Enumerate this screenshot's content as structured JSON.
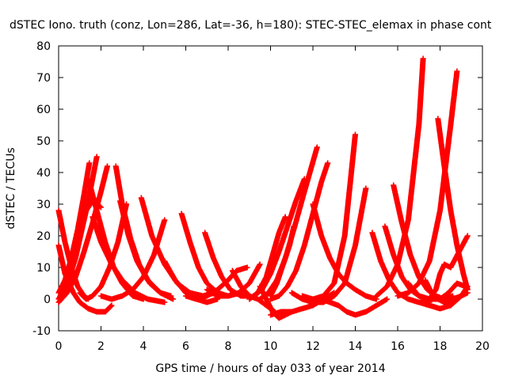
{
  "chart_data": {
    "type": "scatter",
    "title": "dSTEC Iono. truth (conz, Lon=286, Lat=-36, h=180): STEC-STEC_elemax in phase cont",
    "xlabel": "GPS time / hours of day 033 of year 2014",
    "ylabel": "dSTEC  / TECUs",
    "xlim": [
      0,
      20
    ],
    "ylim": [
      -10,
      80
    ],
    "x_ticks": [
      0,
      2,
      4,
      6,
      8,
      10,
      12,
      14,
      16,
      18,
      20
    ],
    "y_ticks": [
      -10,
      0,
      10,
      20,
      30,
      40,
      50,
      60,
      70,
      80
    ],
    "grid": false,
    "legend": "none",
    "marker": "+",
    "color": "#ff0000",
    "arcs": [
      {
        "x": [
          0.0,
          0.3,
          0.6,
          0.9,
          1.2,
          1.4
        ],
        "y": [
          28,
          18,
          10,
          4,
          1,
          0
        ]
      },
      {
        "x": [
          0.0,
          0.3,
          0.7,
          1.0,
          1.4,
          1.8,
          2.2,
          2.5
        ],
        "y": [
          17,
          8,
          2,
          -1,
          -3,
          -4,
          -4,
          -2
        ]
      },
      {
        "x": [
          0.0,
          0.3,
          0.6,
          0.9,
          1.2,
          1.45
        ],
        "y": [
          2,
          6,
          13,
          22,
          33,
          43
        ]
      },
      {
        "x": [
          0.0,
          0.4,
          0.8,
          1.1,
          1.4,
          1.8
        ],
        "y": [
          0,
          5,
          13,
          22,
          31,
          45
        ]
      },
      {
        "x": [
          0.0,
          0.4,
          0.8,
          1.2,
          1.6,
          2.0,
          2.3
        ],
        "y": [
          -1,
          2,
          7,
          15,
          24,
          34,
          42
        ]
      },
      {
        "x": [
          0.1,
          0.4,
          0.7,
          1.0,
          1.3,
          1.6,
          2.0
        ],
        "y": [
          1,
          4,
          11,
          20,
          28,
          31,
          29
        ]
      },
      {
        "x": [
          1.4,
          1.8,
          2.2,
          2.6,
          3.0,
          3.5,
          4.0
        ],
        "y": [
          38,
          28,
          18,
          10,
          5,
          1,
          0
        ]
      },
      {
        "x": [
          1.6,
          2.0,
          2.5,
          3.0,
          3.6,
          4.2,
          5.0
        ],
        "y": [
          26,
          18,
          11,
          6,
          2,
          0,
          -1
        ]
      },
      {
        "x": [
          1.0,
          1.3,
          1.6,
          2.0,
          2.4,
          2.8,
          3.2
        ],
        "y": [
          2,
          0,
          1,
          4,
          10,
          18,
          30
        ]
      },
      {
        "x": [
          2.7,
          3.0,
          3.4,
          3.8,
          4.3,
          4.8,
          5.3
        ],
        "y": [
          42,
          30,
          19,
          11,
          5,
          2,
          1
        ]
      },
      {
        "x": [
          2.9,
          3.3,
          3.7,
          4.2,
          4.8,
          5.4
        ],
        "y": [
          31,
          20,
          12,
          6,
          2,
          0
        ]
      },
      {
        "x": [
          2.0,
          2.5,
          3.0,
          3.5,
          4.0,
          4.5,
          5.0
        ],
        "y": [
          1,
          0,
          1,
          3,
          7,
          14,
          25
        ]
      },
      {
        "x": [
          3.9,
          4.4,
          5.0,
          5.6,
          6.2,
          6.8,
          7.4
        ],
        "y": [
          32,
          20,
          11,
          5,
          2,
          1,
          2
        ]
      },
      {
        "x": [
          5.0,
          5.5,
          6.0,
          6.5,
          7.0,
          7.5
        ],
        "y": [
          12,
          6,
          2,
          0,
          -1,
          0
        ]
      },
      {
        "x": [
          5.8,
          6.2,
          6.6,
          7.0,
          7.5,
          8.0,
          8.6
        ],
        "y": [
          27,
          18,
          10,
          5,
          2,
          1,
          2
        ]
      },
      {
        "x": [
          6.9,
          7.3,
          7.7,
          8.1,
          8.6,
          9.0
        ],
        "y": [
          21,
          13,
          7,
          3,
          1,
          1
        ]
      },
      {
        "x": [
          6.0,
          6.5,
          7.0,
          7.5,
          8.0,
          8.4,
          8.9
        ],
        "y": [
          1,
          0,
          1,
          3,
          6,
          9,
          10
        ]
      },
      {
        "x": [
          7.0,
          7.5,
          8.0,
          8.5,
          9.0,
          9.5
        ],
        "y": [
          3,
          1,
          1,
          2,
          5,
          11
        ]
      },
      {
        "x": [
          8.2,
          8.6,
          9.0,
          9.4,
          9.8,
          10.2
        ],
        "y": [
          9,
          4,
          1,
          0,
          -2,
          -4
        ]
      },
      {
        "x": [
          9.5,
          9.8,
          10.1,
          10.4,
          10.7,
          11.0
        ],
        "y": [
          4,
          0,
          -4,
          -6,
          -5,
          -4
        ]
      },
      {
        "x": [
          10.0,
          10.5,
          11.0,
          11.5,
          12.0,
          12.5,
          13.0
        ],
        "y": [
          -5,
          -4,
          -4,
          -3,
          -2,
          0,
          2
        ]
      },
      {
        "x": [
          9.0,
          9.4,
          9.8,
          10.1,
          10.4,
          10.7
        ],
        "y": [
          0,
          2,
          7,
          14,
          21,
          26
        ]
      },
      {
        "x": [
          9.2,
          9.6,
          10.0,
          10.4,
          10.8,
          11.2,
          11.6
        ],
        "y": [
          1,
          3,
          8,
          15,
          23,
          31,
          38
        ]
      },
      {
        "x": [
          9.5,
          9.9,
          10.3,
          10.7,
          11.1,
          11.6,
          12.2
        ],
        "y": [
          0,
          2,
          6,
          13,
          22,
          34,
          48
        ]
      },
      {
        "x": [
          10.0,
          10.4,
          10.8,
          11.2,
          11.6,
          12.0,
          12.4,
          12.7
        ],
        "y": [
          0,
          1,
          4,
          9,
          17,
          27,
          37,
          43
        ]
      },
      {
        "x": [
          10.0,
          10.3,
          10.6,
          10.9,
          11.1
        ],
        "y": [
          1,
          5,
          11,
          17,
          23
        ]
      },
      {
        "x": [
          11.0,
          11.5,
          12.0,
          12.5,
          13.0,
          13.5,
          14.0,
          14.5
        ],
        "y": [
          2,
          0,
          -1,
          -1,
          1,
          5,
          17,
          35
        ]
      },
      {
        "x": [
          11.5,
          12.0,
          12.5,
          13.0,
          13.5,
          14.0
        ],
        "y": [
          1,
          0,
          1,
          5,
          20,
          52
        ]
      },
      {
        "x": [
          12.4,
          12.8,
          13.2,
          13.6,
          14.0,
          14.5,
          15.0,
          15.5
        ],
        "y": [
          0,
          -1,
          -2,
          -4,
          -5,
          -4,
          -2,
          0
        ]
      },
      {
        "x": [
          12.0,
          12.4,
          12.8,
          13.2,
          13.6,
          14.0,
          14.5,
          15.0
        ],
        "y": [
          30,
          20,
          13,
          8,
          5,
          3,
          1,
          0
        ]
      },
      {
        "x": [
          14.8,
          15.2,
          15.6,
          16.0,
          16.5,
          17.0,
          17.5
        ],
        "y": [
          21,
          12,
          6,
          2,
          0,
          -1,
          -1
        ]
      },
      {
        "x": [
          15.4,
          15.8,
          16.2,
          16.6,
          17.0,
          17.5,
          18.0
        ],
        "y": [
          23,
          14,
          7,
          3,
          1,
          0,
          0
        ]
      },
      {
        "x": [
          15.8,
          16.2,
          16.6,
          17.0,
          17.4,
          17.8,
          18.2,
          18.6
        ],
        "y": [
          36,
          24,
          14,
          7,
          3,
          1,
          0,
          1
        ]
      },
      {
        "x": [
          15.0,
          15.5,
          16.0,
          16.5,
          17.0,
          17.2
        ],
        "y": [
          1,
          4,
          11,
          25,
          55,
          76
        ]
      },
      {
        "x": [
          16.0,
          16.5,
          17.0,
          17.5,
          18.0,
          18.5,
          18.8
        ],
        "y": [
          1,
          2,
          5,
          12,
          28,
          55,
          72
        ]
      },
      {
        "x": [
          17.9,
          18.2,
          18.5,
          18.8,
          19.1,
          19.3
        ],
        "y": [
          57,
          42,
          28,
          17,
          8,
          3
        ]
      },
      {
        "x": [
          17.3,
          17.6,
          17.9,
          18.2,
          18.6,
          19.0,
          19.3
        ],
        "y": [
          6,
          2,
          0,
          -1,
          0,
          1,
          2
        ]
      },
      {
        "x": [
          17.6,
          17.8,
          18.0,
          18.2,
          18.5,
          18.9,
          19.3
        ],
        "y": [
          1,
          3,
          8,
          11,
          10,
          15,
          20
        ]
      },
      {
        "x": [
          16.5,
          17.0,
          17.5,
          18.0,
          18.4,
          18.8,
          19.2
        ],
        "y": [
          5,
          1,
          0,
          0,
          2,
          5,
          4
        ]
      },
      {
        "x": [
          17.0,
          17.5,
          18.0,
          18.5,
          19.0,
          19.3
        ],
        "y": [
          -1,
          -2,
          -3,
          -2,
          1,
          4
        ]
      }
    ]
  }
}
